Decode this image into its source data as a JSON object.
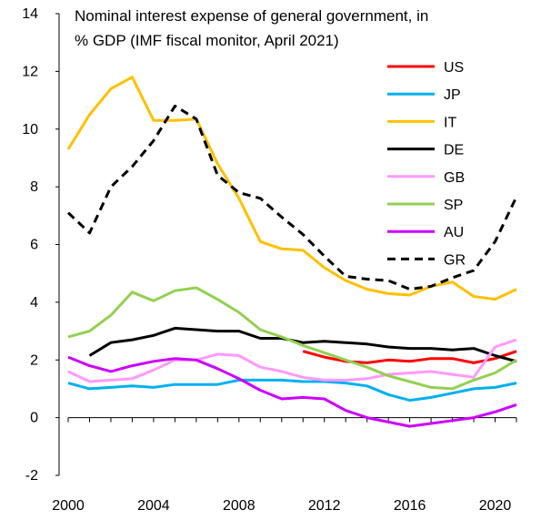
{
  "chart_data": {
    "type": "line",
    "title_lines": [
      "Nominal interest expense of general government, in",
      "% GDP (IMF fiscal monitor, April 2021)"
    ],
    "xlabel": "",
    "ylabel": "",
    "xlim": [
      2000,
      2021
    ],
    "ylim": [
      -2,
      14
    ],
    "x_ticks": [
      2000,
      2004,
      2008,
      2012,
      2016,
      2020
    ],
    "y_ticks": [
      -2,
      0,
      2,
      4,
      6,
      8,
      10,
      12,
      14
    ],
    "grid": false,
    "legend_position": "right",
    "series": [
      {
        "name": "US",
        "color": "#ff0000",
        "dash": "solid",
        "x": [
          2011,
          2012,
          2013,
          2014,
          2015,
          2016,
          2017,
          2018,
          2019,
          2020,
          2021
        ],
        "values": [
          2.3,
          2.1,
          1.95,
          1.9,
          2.0,
          1.95,
          2.05,
          2.05,
          1.9,
          2.05,
          2.3
        ]
      },
      {
        "name": "JP",
        "color": "#00b0f0",
        "dash": "solid",
        "x": [
          2000,
          2001,
          2002,
          2003,
          2004,
          2005,
          2006,
          2007,
          2008,
          2009,
          2010,
          2011,
          2012,
          2013,
          2014,
          2015,
          2016,
          2017,
          2018,
          2019,
          2020,
          2021
        ],
        "values": [
          1.2,
          1.0,
          1.05,
          1.1,
          1.05,
          1.15,
          1.15,
          1.15,
          1.3,
          1.3,
          1.3,
          1.25,
          1.25,
          1.2,
          1.1,
          0.8,
          0.6,
          0.7,
          0.85,
          1.0,
          1.05,
          1.2
        ]
      },
      {
        "name": "IT",
        "color": "#ffc000",
        "dash": "solid",
        "x": [
          2000,
          2001,
          2002,
          2003,
          2004,
          2005,
          2006,
          2007,
          2008,
          2009,
          2010,
          2011,
          2012,
          2013,
          2014,
          2015,
          2016,
          2017,
          2018,
          2019,
          2020,
          2021
        ],
        "values": [
          9.3,
          10.5,
          11.4,
          11.8,
          10.3,
          10.3,
          10.35,
          8.8,
          7.6,
          6.1,
          5.85,
          5.8,
          5.2,
          4.75,
          4.45,
          4.3,
          4.25,
          4.55,
          4.7,
          4.2,
          4.1,
          4.45
        ]
      },
      {
        "name": "DE",
        "color": "#000000",
        "dash": "solid",
        "x": [
          2001,
          2002,
          2003,
          2004,
          2005,
          2006,
          2007,
          2008,
          2009,
          2010,
          2011,
          2012,
          2013,
          2014,
          2015,
          2016,
          2017,
          2018,
          2019,
          2020,
          2021
        ],
        "values": [
          2.15,
          2.6,
          2.7,
          2.85,
          3.1,
          3.05,
          3.0,
          3.0,
          2.75,
          2.75,
          2.6,
          2.65,
          2.6,
          2.55,
          2.45,
          2.4,
          2.4,
          2.35,
          2.4,
          2.15,
          1.95
        ]
      },
      {
        "name": "GB",
        "color": "#ff99ff",
        "dash": "solid",
        "x": [
          2000,
          2001,
          2002,
          2003,
          2004,
          2005,
          2006,
          2007,
          2008,
          2009,
          2010,
          2011,
          2012,
          2013,
          2014,
          2015,
          2016,
          2017,
          2018,
          2019,
          2020,
          2021
        ],
        "values": [
          1.6,
          1.25,
          1.3,
          1.35,
          1.65,
          2.0,
          2.0,
          2.2,
          2.15,
          1.75,
          1.6,
          1.4,
          1.3,
          1.3,
          1.35,
          1.5,
          1.55,
          1.6,
          1.5,
          1.4,
          2.45,
          2.7
        ]
      },
      {
        "name": "SP",
        "color": "#92d050",
        "dash": "solid",
        "x": [
          2000,
          2001,
          2002,
          2003,
          2004,
          2005,
          2006,
          2007,
          2008,
          2009,
          2010,
          2011,
          2012,
          2013,
          2014,
          2015,
          2016,
          2017,
          2018,
          2019,
          2020,
          2021
        ],
        "values": [
          2.8,
          3.0,
          3.55,
          4.35,
          4.05,
          4.4,
          4.5,
          4.1,
          3.65,
          3.05,
          2.8,
          2.5,
          2.25,
          2.0,
          1.75,
          1.45,
          1.25,
          1.05,
          1.0,
          1.3,
          1.55,
          2.0
        ]
      },
      {
        "name": "AU",
        "color": "#cc00ff",
        "dash": "solid",
        "x": [
          2000,
          2001,
          2002,
          2003,
          2004,
          2005,
          2006,
          2007,
          2008,
          2009,
          2010,
          2011,
          2012,
          2013,
          2014,
          2015,
          2016,
          2017,
          2018,
          2019,
          2020,
          2021
        ],
        "values": [
          2.1,
          1.8,
          1.6,
          1.8,
          1.95,
          2.05,
          2.0,
          1.7,
          1.35,
          0.95,
          0.65,
          0.7,
          0.65,
          0.25,
          0.0,
          -0.15,
          -0.3,
          -0.2,
          -0.1,
          0.0,
          0.2,
          0.45
        ]
      },
      {
        "name": "GR",
        "color": "#000000",
        "dash": "dashed",
        "x": [
          2000,
          2001,
          2002,
          2003,
          2004,
          2005,
          2006,
          2007,
          2008,
          2009,
          2010,
          2011,
          2012,
          2013,
          2014,
          2015,
          2016,
          2017,
          2018,
          2019,
          2020,
          2021
        ],
        "values": [
          7.1,
          6.4,
          8.0,
          8.7,
          9.6,
          10.8,
          10.35,
          8.4,
          7.8,
          7.6,
          6.95,
          6.35,
          5.6,
          4.9,
          4.8,
          4.75,
          4.45,
          4.55,
          4.85,
          5.1,
          6.1,
          7.65
        ]
      }
    ]
  }
}
